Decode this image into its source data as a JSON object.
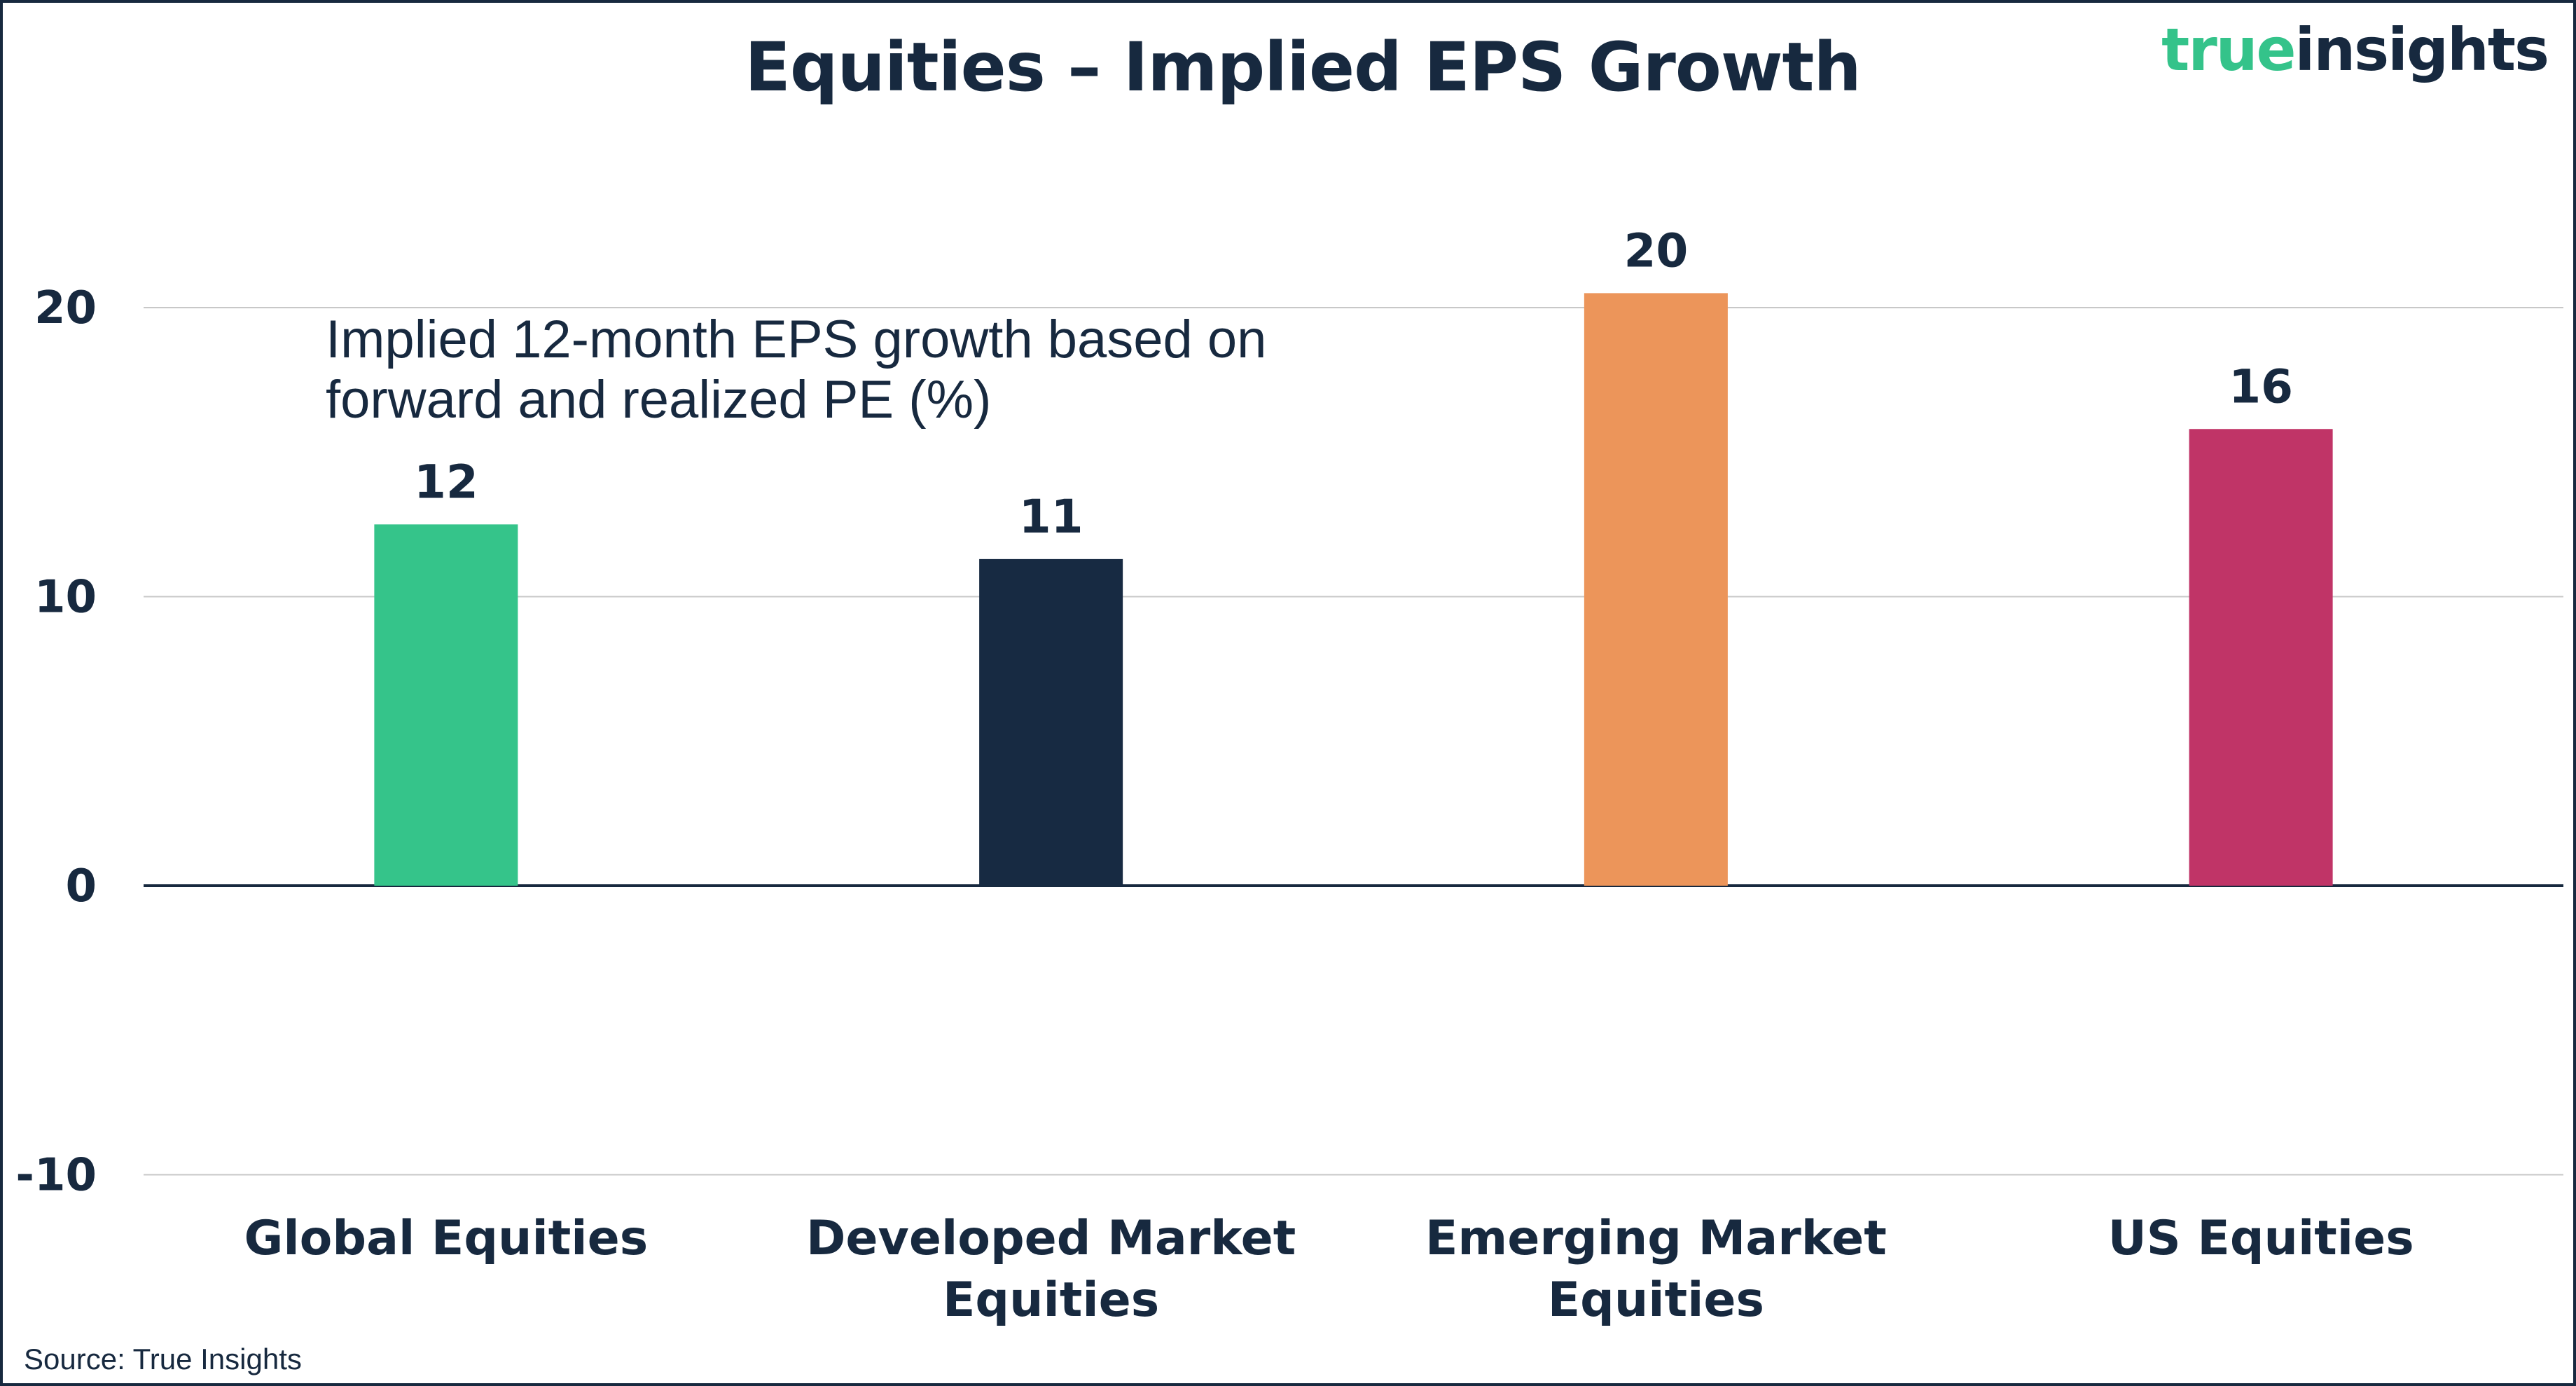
{
  "header": {
    "title": "Equities – Implied EPS Growth",
    "brand_part1": "true",
    "brand_part2": "insights"
  },
  "footer": {
    "source": "Source: True Insights"
  },
  "colors": {
    "text": "#17293f",
    "brand_green": "#34c38a",
    "gridline": "#c8c8c8"
  },
  "chart_data": {
    "type": "bar",
    "title": "Equities – Implied EPS Growth",
    "annotation": [
      "Implied 12-month EPS growth based on",
      "forward and realized PE (%)"
    ],
    "categories": [
      [
        "Global Equities"
      ],
      [
        "Developed Market",
        "Equities"
      ],
      [
        "Emerging Market",
        "Equities"
      ],
      [
        "US Equities"
      ]
    ],
    "values": [
      12.5,
      11.3,
      20.5,
      15.8
    ],
    "data_labels": [
      "12",
      "11",
      "20",
      "16"
    ],
    "bar_colors": [
      "#35c48a",
      "#172a42",
      "#ec955a",
      "#c03467"
    ],
    "yticks": [
      20,
      10,
      0,
      -10
    ],
    "ytick_labels": [
      "20",
      "10",
      "0",
      "-10"
    ],
    "ylim": [
      -10,
      20
    ],
    "xlabel": "",
    "ylabel": "",
    "grid": true,
    "legend": "none"
  }
}
